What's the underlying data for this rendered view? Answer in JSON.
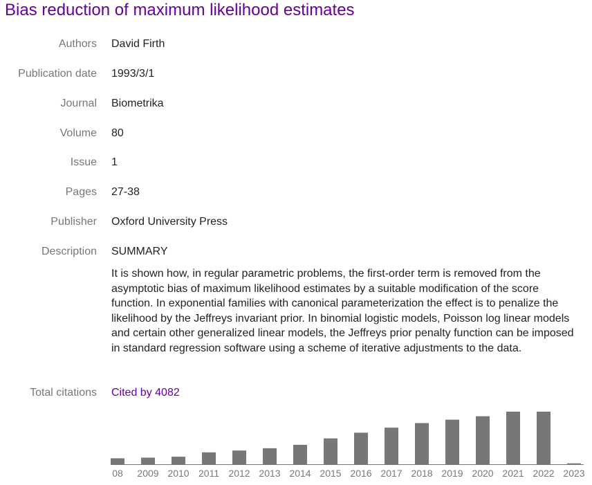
{
  "article": {
    "title": "Bias reduction of maximum likelihood estimates"
  },
  "fields": {
    "authors": {
      "label": "Authors",
      "value": "David Firth"
    },
    "publication_date": {
      "label": "Publication date",
      "value": "1993/3/1"
    },
    "journal": {
      "label": "Journal",
      "value": "Biometrika"
    },
    "volume": {
      "label": "Volume",
      "value": "80"
    },
    "issue": {
      "label": "Issue",
      "value": "1"
    },
    "pages": {
      "label": "Pages",
      "value": "27-38"
    },
    "publisher": {
      "label": "Publisher",
      "value": "Oxford University Press"
    },
    "description": {
      "label": "Description",
      "heading": "SUMMARY",
      "body": "It is shown how, in regular parametric problems, the first-order term is removed from the asymptotic bias of maximum likelihood estimates by a suitable modification of the score function. In exponential families with canonical parameterization the effect is to penalize the likelihood by the Jeffreys invariant prior. In binomial logistic models, Poisson log linear models and certain other generalized linear models, the Jeffreys prior penalty function can be imposed in standard regression software using a scheme of iterative adjustments to the data."
    },
    "total_citations": {
      "label": "Total citations",
      "link_text": "Cited by 4082"
    }
  },
  "colors": {
    "title_link": "#660099",
    "label_text": "#777777",
    "value_text": "#222222",
    "bar": "#777777",
    "axis": "#777777"
  },
  "chart_data": {
    "type": "bar",
    "categories": [
      "08",
      "2009",
      "2010",
      "2011",
      "2012",
      "2013",
      "2014",
      "2015",
      "2016",
      "2017",
      "2018",
      "2019",
      "2020",
      "2021",
      "2022",
      "2023"
    ],
    "values": [
      26,
      29,
      33,
      52,
      60,
      70,
      85,
      113,
      138,
      160,
      180,
      195,
      210,
      230,
      230,
      4
    ],
    "title": "",
    "xlabel": "",
    "ylabel": "",
    "ylim": [
      0,
      230
    ],
    "grid": false
  }
}
